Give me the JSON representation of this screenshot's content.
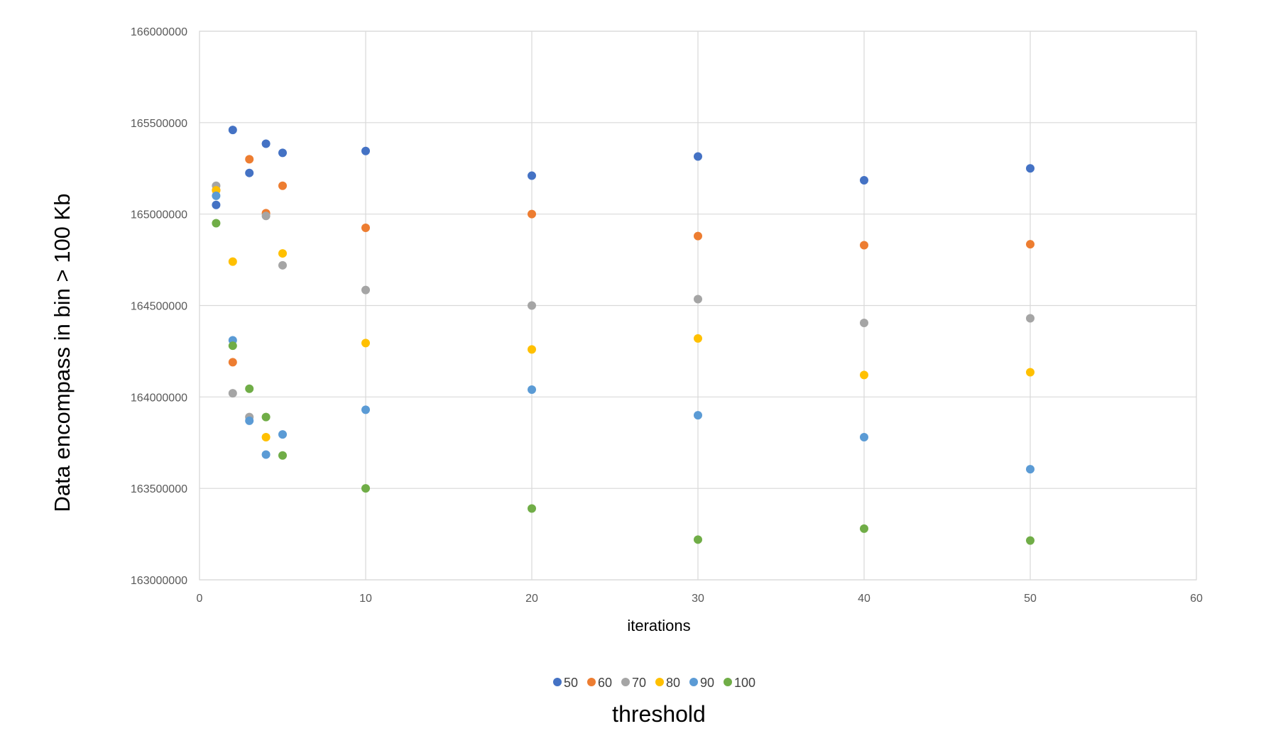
{
  "chart_data": {
    "type": "scatter",
    "title": "",
    "xlabel": "iterations",
    "ylabel": "Data encompass in bin > 100 Kb",
    "legend_title": "threshold",
    "legend_position": "bottom",
    "grid": true,
    "xlim": [
      0,
      60
    ],
    "ylim": [
      163000000,
      166000000
    ],
    "x_ticks": [
      0,
      10,
      20,
      30,
      40,
      50,
      60
    ],
    "y_ticks": [
      163000000,
      163500000,
      164000000,
      164500000,
      165000000,
      165500000,
      166000000
    ],
    "x_tick_labels": [
      "0",
      "10",
      "20",
      "30",
      "40",
      "50",
      "60"
    ],
    "y_tick_labels": [
      "163000000",
      "163500000",
      "164000000",
      "164500000",
      "165000000",
      "165500000",
      "166000000"
    ],
    "series": [
      {
        "name": "50",
        "color": "#4472C4",
        "points": [
          [
            1,
            165050000
          ],
          [
            2,
            165460000
          ],
          [
            3,
            165225000
          ],
          [
            4,
            165385000
          ],
          [
            5,
            165335000
          ],
          [
            10,
            165345000
          ],
          [
            20,
            165210000
          ],
          [
            30,
            165315000
          ],
          [
            40,
            165185000
          ],
          [
            50,
            165250000
          ]
        ]
      },
      {
        "name": "60",
        "color": "#ED7D31",
        "points": [
          [
            1,
            165130000
          ],
          [
            2,
            164190000
          ],
          [
            3,
            165300000
          ],
          [
            4,
            165005000
          ],
          [
            5,
            165155000
          ],
          [
            10,
            164925000
          ],
          [
            20,
            165000000
          ],
          [
            30,
            164880000
          ],
          [
            40,
            164830000
          ],
          [
            50,
            164835000
          ]
        ]
      },
      {
        "name": "70",
        "color": "#A5A5A5",
        "points": [
          [
            1,
            165155000
          ],
          [
            2,
            164020000
          ],
          [
            3,
            163890000
          ],
          [
            4,
            164990000
          ],
          [
            5,
            164720000
          ],
          [
            10,
            164585000
          ],
          [
            20,
            164500000
          ],
          [
            30,
            164535000
          ],
          [
            40,
            164405000
          ],
          [
            50,
            164430000
          ]
        ]
      },
      {
        "name": "80",
        "color": "#FFC000",
        "points": [
          [
            1,
            165130000
          ],
          [
            2,
            164740000
          ],
          [
            4,
            163780000
          ],
          [
            5,
            164785000
          ],
          [
            10,
            164295000
          ],
          [
            20,
            164260000
          ],
          [
            30,
            164320000
          ],
          [
            40,
            164120000
          ],
          [
            50,
            164135000
          ]
        ]
      },
      {
        "name": "90",
        "color": "#5B9BD5",
        "points": [
          [
            1,
            165100000
          ],
          [
            2,
            164310000
          ],
          [
            3,
            163870000
          ],
          [
            4,
            163685000
          ],
          [
            5,
            163795000
          ],
          [
            10,
            163930000
          ],
          [
            20,
            164040000
          ],
          [
            30,
            163900000
          ],
          [
            40,
            163780000
          ],
          [
            50,
            163605000
          ]
        ]
      },
      {
        "name": "100",
        "color": "#70AD47",
        "points": [
          [
            1,
            164950000
          ],
          [
            2,
            164280000
          ],
          [
            3,
            164045000
          ],
          [
            4,
            163890000
          ],
          [
            5,
            163680000
          ],
          [
            10,
            163500000
          ],
          [
            20,
            163390000
          ],
          [
            30,
            163220000
          ],
          [
            40,
            163280000
          ],
          [
            50,
            163215000
          ]
        ]
      }
    ]
  }
}
